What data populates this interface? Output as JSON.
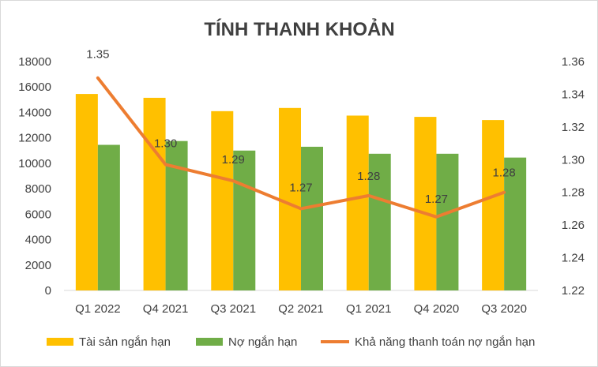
{
  "chart_data": {
    "type": "bar",
    "title": "TÍNH THANH KHOẢN",
    "categories": [
      "Q1 2022",
      "Q4 2021",
      "Q3 2021",
      "Q2 2021",
      "Q1 2021",
      "Q4 2020",
      "Q3 2020"
    ],
    "series": [
      {
        "name": "Tài sản ngắn hạn",
        "type": "bar",
        "axis": "left",
        "color": "#FFC000",
        "values": [
          15450,
          15150,
          14100,
          14350,
          13750,
          13650,
          13400
        ]
      },
      {
        "name": "Nợ ngắn hạn",
        "type": "bar",
        "axis": "left",
        "color": "#70AD47",
        "values": [
          11450,
          11750,
          11000,
          11300,
          10750,
          10750,
          10450
        ]
      },
      {
        "name": "Khả năng thanh toán nợ ngắn hạn",
        "type": "line",
        "axis": "right",
        "color": "#ED7D31",
        "values": [
          1.35,
          1.297,
          1.287,
          1.27,
          1.278,
          1.265,
          1.28
        ],
        "labels": [
          "1.35",
          "1.30",
          "1.29",
          "1.27",
          "1.28",
          "1.27",
          "1.28"
        ]
      }
    ],
    "y_left": {
      "min": 0,
      "max": 18000,
      "ticks": [
        "0",
        "2000",
        "4000",
        "6000",
        "8000",
        "10000",
        "12000",
        "14000",
        "16000",
        "18000"
      ]
    },
    "y_right": {
      "min": 1.22,
      "max": 1.36,
      "ticks": [
        "1.22",
        "1.24",
        "1.26",
        "1.28",
        "1.30",
        "1.32",
        "1.34",
        "1.36"
      ]
    },
    "grid": false,
    "legend": "bottom"
  }
}
